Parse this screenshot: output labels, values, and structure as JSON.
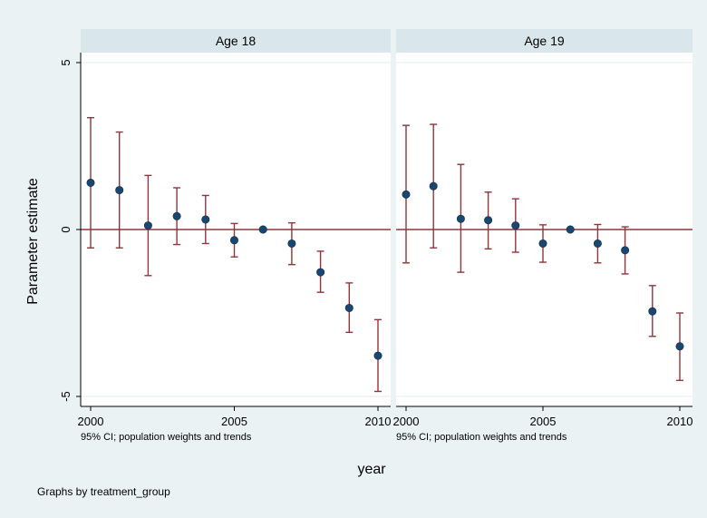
{
  "chart_data": {
    "type": "scatter",
    "ylabel": "Parameter estimate",
    "xlabel": "year",
    "note": "Graphs by treatment_group",
    "xlim": [
      2000,
      2010
    ],
    "ylim": [
      -5,
      5
    ],
    "xticks": [
      2000,
      2005,
      2010
    ],
    "yticks": [
      -5,
      0,
      5
    ],
    "reference_line": 0,
    "colors": {
      "background": "#eaf2f3",
      "strip": "#d9e6eb",
      "panel": "#ffffff",
      "marker": "#1a476f",
      "ci": "#90353b",
      "refline": "#90353b"
    },
    "panels": [
      {
        "title": "Age 18",
        "caption": "95% CI; population weights and trends",
        "points": [
          {
            "x": 2000,
            "y": 1.4,
            "lo": -0.55,
            "hi": 3.35
          },
          {
            "x": 2001,
            "y": 1.18,
            "lo": -0.55,
            "hi": 2.92
          },
          {
            "x": 2002,
            "y": 0.12,
            "lo": -1.38,
            "hi": 1.62
          },
          {
            "x": 2003,
            "y": 0.4,
            "lo": -0.45,
            "hi": 1.25
          },
          {
            "x": 2004,
            "y": 0.3,
            "lo": -0.42,
            "hi": 1.02
          },
          {
            "x": 2005,
            "y": -0.32,
            "lo": -0.82,
            "hi": 0.18
          },
          {
            "x": 2006,
            "y": 0.0,
            "lo": 0.0,
            "hi": 0.0
          },
          {
            "x": 2007,
            "y": -0.42,
            "lo": -1.05,
            "hi": 0.2
          },
          {
            "x": 2008,
            "y": -1.28,
            "lo": -1.88,
            "hi": -0.65
          },
          {
            "x": 2009,
            "y": -2.35,
            "lo": -3.08,
            "hi": -1.6
          },
          {
            "x": 2010,
            "y": -3.78,
            "lo": -4.85,
            "hi": -2.7
          }
        ]
      },
      {
        "title": "Age 19",
        "caption": "95% CI; population weights and trends",
        "points": [
          {
            "x": 2000,
            "y": 1.05,
            "lo": -1.0,
            "hi": 3.12
          },
          {
            "x": 2001,
            "y": 1.3,
            "lo": -0.55,
            "hi": 3.15
          },
          {
            "x": 2002,
            "y": 0.32,
            "lo": -1.28,
            "hi": 1.95
          },
          {
            "x": 2003,
            "y": 0.28,
            "lo": -0.58,
            "hi": 1.12
          },
          {
            "x": 2004,
            "y": 0.12,
            "lo": -0.68,
            "hi": 0.92
          },
          {
            "x": 2005,
            "y": -0.42,
            "lo": -0.98,
            "hi": 0.14
          },
          {
            "x": 2006,
            "y": 0.0,
            "lo": 0.0,
            "hi": 0.0
          },
          {
            "x": 2007,
            "y": -0.42,
            "lo": -1.0,
            "hi": 0.15
          },
          {
            "x": 2008,
            "y": -0.62,
            "lo": -1.33,
            "hi": 0.08
          },
          {
            "x": 2009,
            "y": -2.45,
            "lo": -3.2,
            "hi": -1.68
          },
          {
            "x": 2010,
            "y": -3.5,
            "lo": -4.52,
            "hi": -2.5
          }
        ]
      }
    ]
  }
}
